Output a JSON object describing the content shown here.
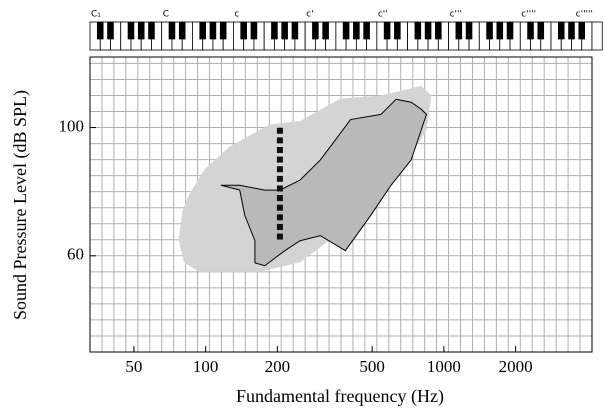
{
  "chart_data": {
    "type": "area",
    "xlabel": "Fundamental frequency (Hz)",
    "ylabel": "Sound Pressure Level (dB SPL)",
    "xscale": "log",
    "xlim": [
      32.7,
      4186
    ],
    "ylim": [
      30,
      122
    ],
    "xticks": [
      50,
      100,
      200,
      500,
      1000,
      2000
    ],
    "yticks": [
      60,
      100
    ],
    "ygrid": [
      35,
      40,
      45,
      50,
      55,
      60,
      65,
      70,
      75,
      80,
      85,
      90,
      95,
      100,
      105,
      110,
      115,
      120
    ],
    "xgrid_step_semitones": 2,
    "grid": true,
    "octave_labels": [
      "C₁",
      "C",
      "c",
      "c'",
      "c''",
      "c'''",
      "c''''",
      "c'''''"
    ],
    "areas": [
      {
        "color": "#d4d4d4",
        "stroke": "none",
        "x": [
          80,
          85,
          99,
          126,
          186,
          249,
          368,
          544,
          804,
          887,
          845,
          661,
          493,
          334,
          249,
          168,
          94,
          81,
          77
        ],
        "y": [
          74,
          79,
          87,
          94,
          101,
          102,
          109,
          110,
          113,
          110,
          99,
          87,
          74,
          65,
          58,
          55,
          55,
          58,
          65
        ]
      },
      {
        "color": "#b9b9b9",
        "stroke": "#000000",
        "x": [
          116,
          139,
          146,
          161,
          161,
          177,
          215,
          249,
          303,
          386,
          493,
          544,
          600,
          729,
          845,
          804,
          729,
          630,
          544,
          406,
          351,
          303,
          249,
          205,
          177,
          139
        ],
        "y": [
          82,
          80.5,
          72.6,
          64.7,
          57.8,
          56.9,
          61.6,
          64.7,
          66.3,
          61.6,
          72.6,
          77.3,
          82,
          89.9,
          104.1,
          105.7,
          107.9,
          108.8,
          104.1,
          102.5,
          96.2,
          89.9,
          83.6,
          80.5,
          80.5,
          82
        ]
      }
    ],
    "points": {
      "color": "#111111",
      "x": [
        205,
        205,
        205,
        205,
        205,
        205,
        205,
        205,
        205,
        205,
        205,
        205
      ],
      "y": [
        99,
        96,
        93,
        90,
        87,
        84,
        81,
        78,
        75,
        72,
        69,
        66
      ]
    }
  }
}
